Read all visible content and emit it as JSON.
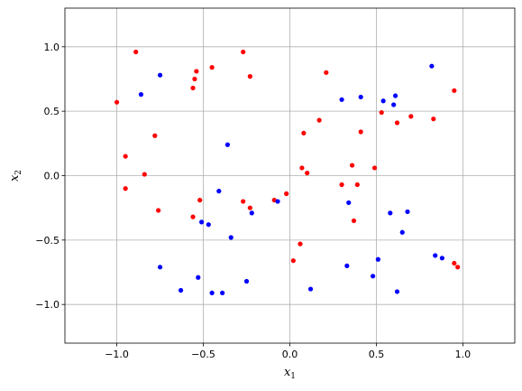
{
  "chart_data": {
    "type": "scatter",
    "title": "",
    "xlabel": "x",
    "xlabel_sub": "1",
    "ylabel": "x",
    "ylabel_sub": "2",
    "xlim": [
      -1.3,
      1.3
    ],
    "ylim": [
      -1.3,
      1.3
    ],
    "xticks": [
      -1.0,
      -0.5,
      0.0,
      0.5,
      1.0
    ],
    "xtick_labels": [
      "−1.0",
      "−0.5",
      "0.0",
      "0.5",
      "1.0"
    ],
    "yticks": [
      -1.0,
      -0.5,
      0.0,
      0.5,
      1.0
    ],
    "ytick_labels": [
      "−1.0",
      "−0.5",
      "0.0",
      "0.5",
      "1.0"
    ],
    "grid": true,
    "series": [
      {
        "color": "#ff0000",
        "points": [
          [
            -1.0,
            0.57
          ],
          [
            -0.89,
            0.96
          ],
          [
            -0.95,
            0.15
          ],
          [
            -0.95,
            -0.1
          ],
          [
            -0.84,
            0.01
          ],
          [
            -0.78,
            0.31
          ],
          [
            -0.76,
            -0.27
          ],
          [
            -0.56,
            0.68
          ],
          [
            -0.55,
            0.75
          ],
          [
            -0.54,
            0.81
          ],
          [
            -0.56,
            -0.32
          ],
          [
            -0.52,
            -0.19
          ],
          [
            -0.45,
            0.84
          ],
          [
            -0.27,
            0.96
          ],
          [
            -0.23,
            0.77
          ],
          [
            -0.27,
            -0.2
          ],
          [
            -0.23,
            -0.25
          ],
          [
            -0.09,
            -0.19
          ],
          [
            -0.02,
            -0.14
          ],
          [
            0.02,
            -0.66
          ],
          [
            0.06,
            -0.53
          ],
          [
            0.07,
            0.06
          ],
          [
            0.08,
            0.33
          ],
          [
            0.1,
            0.02
          ],
          [
            0.17,
            0.43
          ],
          [
            0.21,
            0.8
          ],
          [
            0.3,
            -0.07
          ],
          [
            0.36,
            0.08
          ],
          [
            0.37,
            -0.35
          ],
          [
            0.39,
            -0.07
          ],
          [
            0.41,
            0.34
          ],
          [
            0.49,
            0.06
          ],
          [
            0.53,
            0.49
          ],
          [
            0.62,
            0.41
          ],
          [
            0.7,
            0.46
          ],
          [
            0.83,
            0.44
          ],
          [
            0.95,
            0.66
          ],
          [
            0.95,
            -0.68
          ],
          [
            0.97,
            -0.71
          ]
        ]
      },
      {
        "color": "#0000ff",
        "points": [
          [
            -0.86,
            0.63
          ],
          [
            -0.75,
            0.78
          ],
          [
            -0.75,
            -0.71
          ],
          [
            -0.63,
            -0.89
          ],
          [
            -0.53,
            -0.79
          ],
          [
            -0.51,
            -0.36
          ],
          [
            -0.47,
            -0.38
          ],
          [
            -0.45,
            -0.91
          ],
          [
            -0.41,
            -0.12
          ],
          [
            -0.39,
            -0.91
          ],
          [
            -0.36,
            0.24
          ],
          [
            -0.34,
            -0.48
          ],
          [
            -0.25,
            -0.82
          ],
          [
            -0.22,
            -0.29
          ],
          [
            -0.07,
            -0.2
          ],
          [
            0.12,
            -0.88
          ],
          [
            0.3,
            0.59
          ],
          [
            0.33,
            -0.7
          ],
          [
            0.34,
            -0.21
          ],
          [
            0.41,
            0.61
          ],
          [
            0.48,
            -0.78
          ],
          [
            0.51,
            -0.65
          ],
          [
            0.54,
            0.58
          ],
          [
            0.58,
            -0.29
          ],
          [
            0.6,
            0.55
          ],
          [
            0.61,
            0.62
          ],
          [
            0.62,
            -0.9
          ],
          [
            0.65,
            -0.44
          ],
          [
            0.68,
            -0.28
          ],
          [
            0.82,
            0.85
          ],
          [
            0.84,
            -0.62
          ],
          [
            0.88,
            -0.64
          ]
        ]
      }
    ]
  }
}
